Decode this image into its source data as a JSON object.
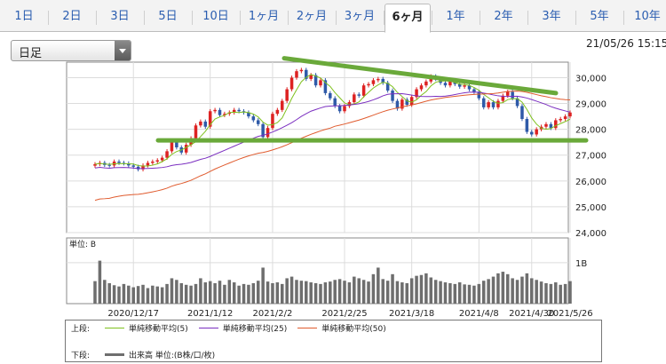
{
  "tabs": {
    "items": [
      "1日",
      "2日",
      "3日",
      "5日",
      "10日",
      "1ヶ月",
      "2ヶ月",
      "3ヶ月",
      "6ヶ月",
      "1年",
      "2年",
      "3年",
      "5年",
      "10年"
    ],
    "active_index": 8
  },
  "period_select": {
    "value": "日足"
  },
  "timestamp": "21/05/26 15:15",
  "colors": {
    "up": "#dd2222",
    "down": "#2f5aa8",
    "ma5": "#7fc11e",
    "ma25": "#7b2fc0",
    "ma50": "#e05b2e",
    "volume": "#6e6e6e",
    "annotation": "#6aa93a"
  },
  "price_axis": {
    "ticks": [
      "30,000",
      "29,000",
      "28,000",
      "27,000",
      "26,000",
      "25,000",
      "24,000"
    ]
  },
  "volume_axis": {
    "unit_label": "単位: B",
    "tick": "1B"
  },
  "date_labels": [
    "2020/12/17",
    "2021/1/12",
    "2021/2/2",
    "2021/2/25",
    "2021/3/18",
    "2021/4/8",
    "2021/4/30",
    "2021/5/26"
  ],
  "legend": {
    "upper_label": "上段:",
    "lower_label": "下段:",
    "ma5": "単純移動平均(5)",
    "ma25": "単純移動平均(25)",
    "ma50": "単純移動平均(50)",
    "volume": "出来高 単位:(B株/口/枚)"
  },
  "chart_data": {
    "type": "candlestick",
    "y_range": [
      24000,
      30600
    ],
    "closes": [
      26650,
      26700,
      26620,
      26600,
      26750,
      26700,
      26680,
      26600,
      26550,
      26450,
      26600,
      26700,
      26750,
      26800,
      26900,
      27150,
      27550,
      27300,
      27100,
      27400,
      27650,
      28150,
      28300,
      28100,
      28700,
      28750,
      28550,
      28600,
      28650,
      28750,
      28700,
      28650,
      28500,
      28350,
      28200,
      27700,
      28050,
      28600,
      28750,
      29100,
      29550,
      30000,
      30250,
      30300,
      29950,
      30100,
      29700,
      29900,
      29400,
      29200,
      28900,
      28700,
      28900,
      29050,
      29350,
      29300,
      29700,
      29750,
      29900,
      29950,
      29800,
      29500,
      29100,
      28800,
      29150,
      28950,
      29250,
      29550,
      29700,
      29850,
      30050,
      29950,
      29800,
      29700,
      29850,
      29750,
      29650,
      29700,
      29550,
      29450,
      29200,
      28850,
      29050,
      28850,
      29100,
      29300,
      29450,
      29200,
      28900,
      28400,
      27900,
      27800,
      28000,
      28100,
      28200,
      28050,
      28350,
      28400,
      28500,
      28650
    ],
    "volumes": [
      0.55,
      1.05,
      0.58,
      0.5,
      0.45,
      0.42,
      0.48,
      0.44,
      0.4,
      0.43,
      0.46,
      0.38,
      0.44,
      0.42,
      0.4,
      0.48,
      0.62,
      0.58,
      0.5,
      0.46,
      0.44,
      0.48,
      0.62,
      0.52,
      0.55,
      0.5,
      0.56,
      0.46,
      0.58,
      0.52,
      0.44,
      0.48,
      0.46,
      0.5,
      0.56,
      0.88,
      0.54,
      0.5,
      0.52,
      0.48,
      0.62,
      0.66,
      0.58,
      0.56,
      0.55,
      0.52,
      0.5,
      0.48,
      0.52,
      0.54,
      0.58,
      0.6,
      0.56,
      0.52,
      0.66,
      0.62,
      0.58,
      0.54,
      0.72,
      0.88,
      0.6,
      0.56,
      0.72,
      0.55,
      0.52,
      0.5,
      0.62,
      0.68,
      0.7,
      0.74,
      0.64,
      0.58,
      0.55,
      0.52,
      0.5,
      0.48,
      0.52,
      0.47,
      0.46,
      0.44,
      0.48,
      0.56,
      0.6,
      0.66,
      0.74,
      0.78,
      0.72,
      0.62,
      0.58,
      0.66,
      0.74,
      0.62,
      0.58,
      0.54,
      0.5,
      0.48,
      0.52,
      0.46,
      0.48,
      0.55
    ],
    "volume_max": 1.0,
    "trendlines": [
      {
        "from": [
          0,
          27570
        ],
        "to": [
          100,
          27570
        ]
      },
      {
        "from": [
          32,
          30750
        ],
        "to": [
          100,
          29400
        ]
      }
    ]
  }
}
